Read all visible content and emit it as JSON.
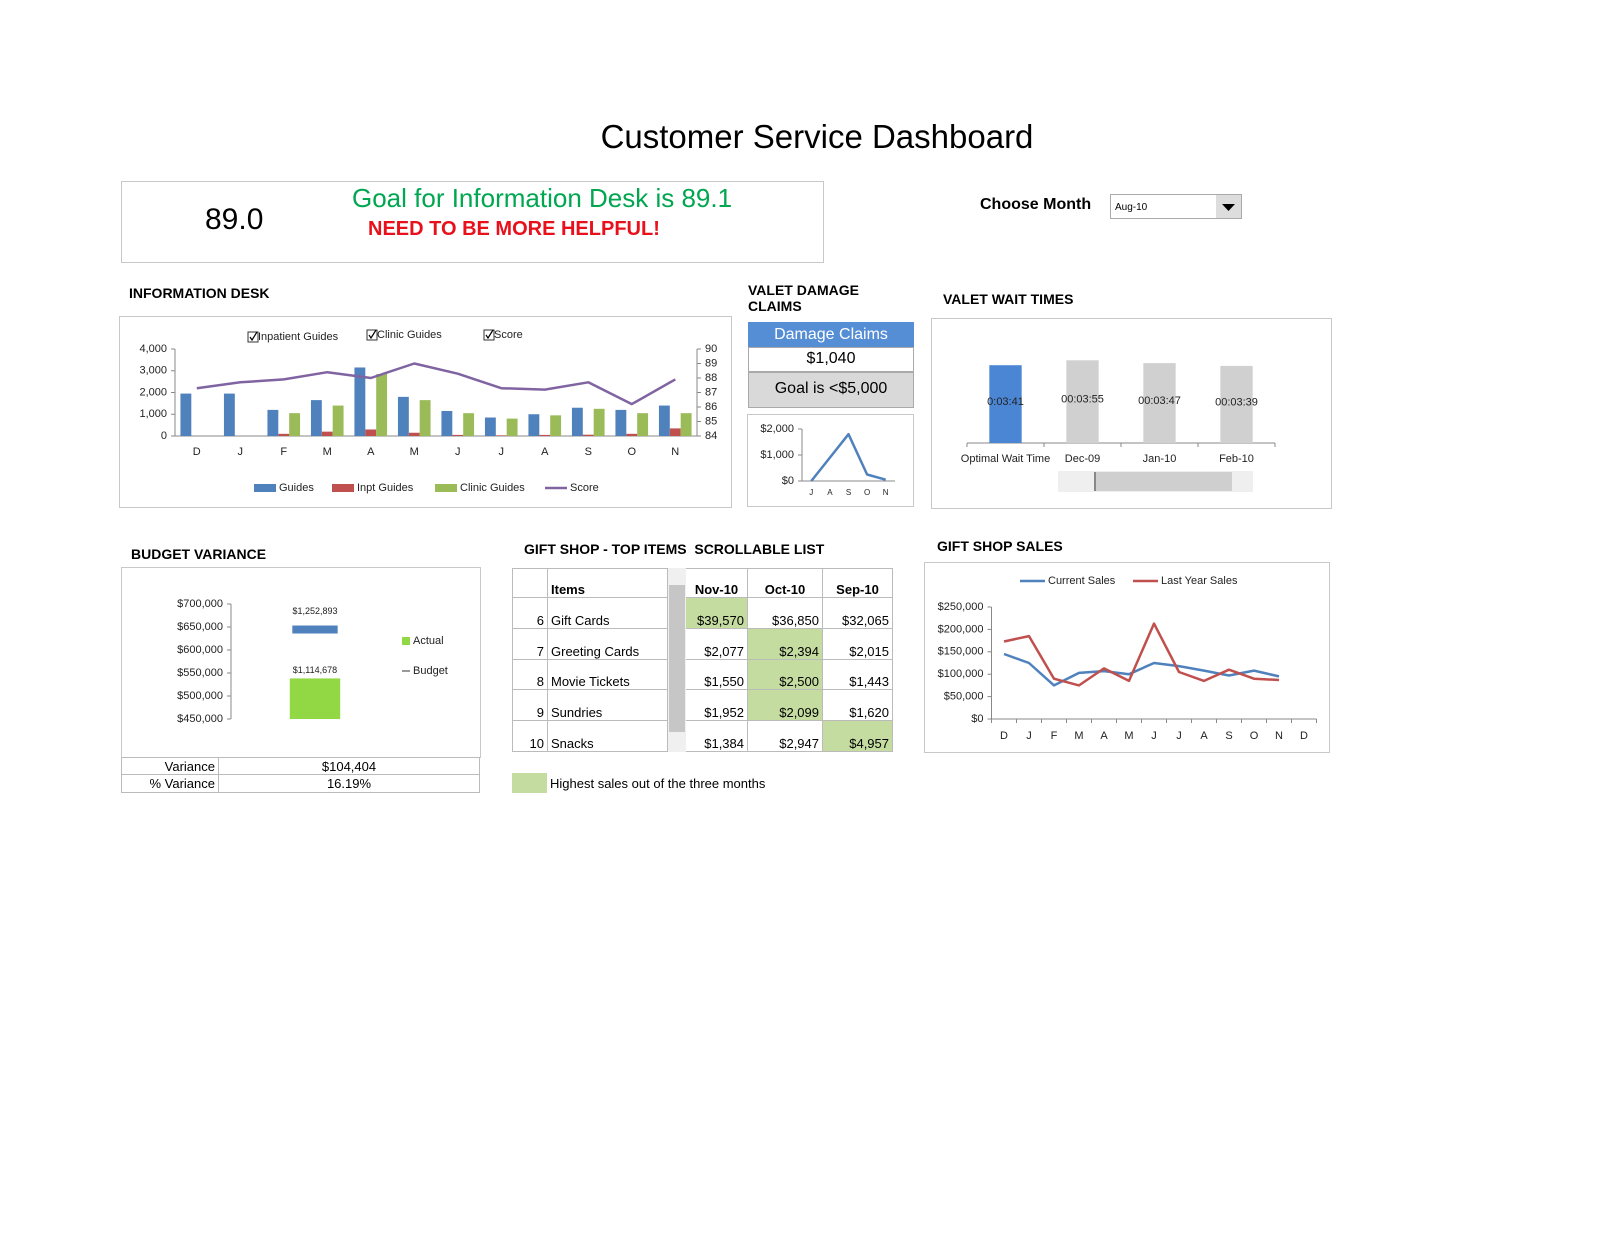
{
  "title": "Customer Service Dashboard",
  "kpi": {
    "score": "89.0",
    "goal": "Goal for Information Desk is 89.1",
    "message": "NEED TO BE MORE HELPFUL!"
  },
  "month_picker": {
    "label": "Choose Month",
    "value": "Aug-10"
  },
  "valet_claims": {
    "header": "Damage Claims",
    "value": "$1,040",
    "goal": "Goal is <$5,000"
  },
  "budget_table": {
    "rows": [
      [
        "Variance",
        "$104,404"
      ],
      [
        "% Variance",
        "16.19%"
      ]
    ]
  },
  "gift_shop_table": {
    "title": "GIFT SHOP - TOP ITEMS  SCROLLABLE LIST",
    "columns": [
      "Items",
      "Nov-10",
      "Oct-10",
      "Sep-10"
    ],
    "rows": [
      [
        "6",
        "Gift Cards",
        "$39,570",
        "$36,850",
        "$32,065"
      ],
      [
        "7",
        "Greeting Cards",
        "$2,077",
        "$2,394",
        "$2,015"
      ],
      [
        "8",
        "Movie Tickets",
        "$1,550",
        "$2,500",
        "$1,443"
      ],
      [
        "9",
        "Sundries",
        "$1,952",
        "$2,099",
        "$1,620"
      ],
      [
        "10",
        "Snacks",
        "$1,384",
        "$2,947",
        "$4,957"
      ]
    ],
    "highlight": [
      2,
      3,
      3,
      3,
      4
    ],
    "highlight_color": "#c4dca0",
    "note": "Highest sales out of the three months"
  },
  "chart_data": [
    {
      "type": "bar",
      "title": "INFORMATION DESK",
      "toggles": [
        "Inpatient Guides",
        "Clinic Guides",
        "Score"
      ],
      "categories": [
        "D",
        "J",
        "F",
        "M",
        "A",
        "M",
        "J",
        "J",
        "A",
        "S",
        "O",
        "N"
      ],
      "series": [
        {
          "name": "Guides",
          "color": "#4f81bd",
          "values": [
            1950,
            1950,
            1200,
            1650,
            3150,
            1800,
            1150,
            850,
            1000,
            1300,
            1200,
            1400
          ]
        },
        {
          "name": "Inpt Guides",
          "color": "#c0504d",
          "values": [
            0,
            0,
            100,
            200,
            300,
            150,
            50,
            30,
            50,
            60,
            100,
            350
          ]
        },
        {
          "name": "Clinic Guides",
          "color": "#9bbb59",
          "values": [
            0,
            0,
            1050,
            1400,
            2850,
            1650,
            1050,
            800,
            950,
            1250,
            1050,
            1050
          ]
        },
        {
          "name": "Score",
          "color": "#8064a2",
          "type": "line",
          "axis": "y2",
          "values": [
            87.3,
            87.7,
            87.9,
            88.4,
            88.0,
            89.0,
            88.3,
            87.3,
            87.2,
            87.7,
            86.2,
            87.9
          ]
        }
      ],
      "ylim": [
        0,
        4000
      ],
      "yticks": [
        0,
        {
          "value": 1000,
          "label": "1,000"
        },
        {
          "value": 2000,
          "label": "2,000"
        },
        {
          "value": 3000,
          "label": "3,000"
        },
        {
          "value": 4000,
          "label": "4,000"
        }
      ],
      "y2lim": [
        84,
        90
      ],
      "y2ticks": [
        84,
        85,
        86,
        87,
        88,
        89,
        90
      ],
      "legend": "bottom"
    },
    {
      "type": "line",
      "title": "VALET DAMAGE CLAIMS",
      "categories": [
        "J",
        "A",
        "S",
        "O",
        "N"
      ],
      "values": [
        0,
        900,
        1800,
        250,
        50
      ],
      "color": "#4f81bd",
      "ylim": [
        0,
        2000
      ],
      "yticks": [
        {
          "value": 0,
          "label": "$0"
        },
        {
          "value": 1000,
          "label": "$1,000"
        },
        {
          "value": 2000,
          "label": "$2,000"
        }
      ]
    },
    {
      "type": "bar",
      "title": "VALET WAIT TIMES",
      "categories": [
        "Optimal Wait Time",
        "Dec-09",
        "Jan-10",
        "Feb-10"
      ],
      "values": [
        221,
        235,
        227,
        219
      ],
      "value_labels": [
        "0:03:41",
        "00:03:55",
        "00:03:47",
        "00:03:39"
      ],
      "colors": [
        "#4a86d4",
        "#d0d0d0",
        "#d0d0d0",
        "#d0d0d0"
      ],
      "ylim": [
        0,
        250
      ]
    },
    {
      "type": "bar",
      "title": "BUDGET VARIANCE",
      "categories": [
        null
      ],
      "series": [
        {
          "name": "Actual",
          "color": "#92d844",
          "axis": "y2",
          "values": [
            1114678
          ],
          "value_labels": [
            "$1,114,678"
          ]
        },
        {
          "name": "Budget",
          "color": "#4f81bd",
          "type": "marker",
          "axis": "y2",
          "values": [
            1252893
          ],
          "value_labels": [
            "$1,252,893"
          ]
        }
      ],
      "ylim": [
        450000,
        700000
      ],
      "yticks": [
        {
          "value": 450000,
          "label": "$450,000"
        },
        {
          "value": 500000,
          "label": "$500,000"
        },
        {
          "value": 550000,
          "label": "$550,000"
        },
        {
          "value": 600000,
          "label": "$600,000"
        },
        {
          "value": 650000,
          "label": "$650,000"
        },
        {
          "value": 700000,
          "label": "$700,000"
        }
      ],
      "y2lim": [
        1000000,
        1325000
      ],
      "legend": "right"
    },
    {
      "type": "line",
      "title": "GIFT SHOP SALES",
      "categories": [
        "D",
        "J",
        "F",
        "M",
        "A",
        "M",
        "J",
        "J",
        "A",
        "S",
        "O",
        "N",
        "D"
      ],
      "series": [
        {
          "name": "Current Sales",
          "color": "#4f81bd",
          "values": [
            145000,
            125000,
            75000,
            103000,
            107000,
            100000,
            125000,
            118000,
            108000,
            97000,
            108000,
            95000,
            null
          ]
        },
        {
          "name": "Last Year Sales",
          "color": "#c0504d",
          "values": [
            173000,
            185000,
            90000,
            75000,
            113000,
            85000,
            213000,
            105000,
            85000,
            110000,
            90000,
            87000,
            null
          ]
        }
      ],
      "ylim": [
        0,
        250000
      ],
      "yticks": [
        {
          "value": 0,
          "label": "$0"
        },
        {
          "value": 50000,
          "label": "$50,000"
        },
        {
          "value": 100000,
          "label": "$100,000"
        },
        {
          "value": 150000,
          "label": "$150,000"
        },
        {
          "value": 200000,
          "label": "$200,000"
        },
        {
          "value": 250000,
          "label": "$250,000"
        }
      ],
      "legend": "top"
    }
  ]
}
